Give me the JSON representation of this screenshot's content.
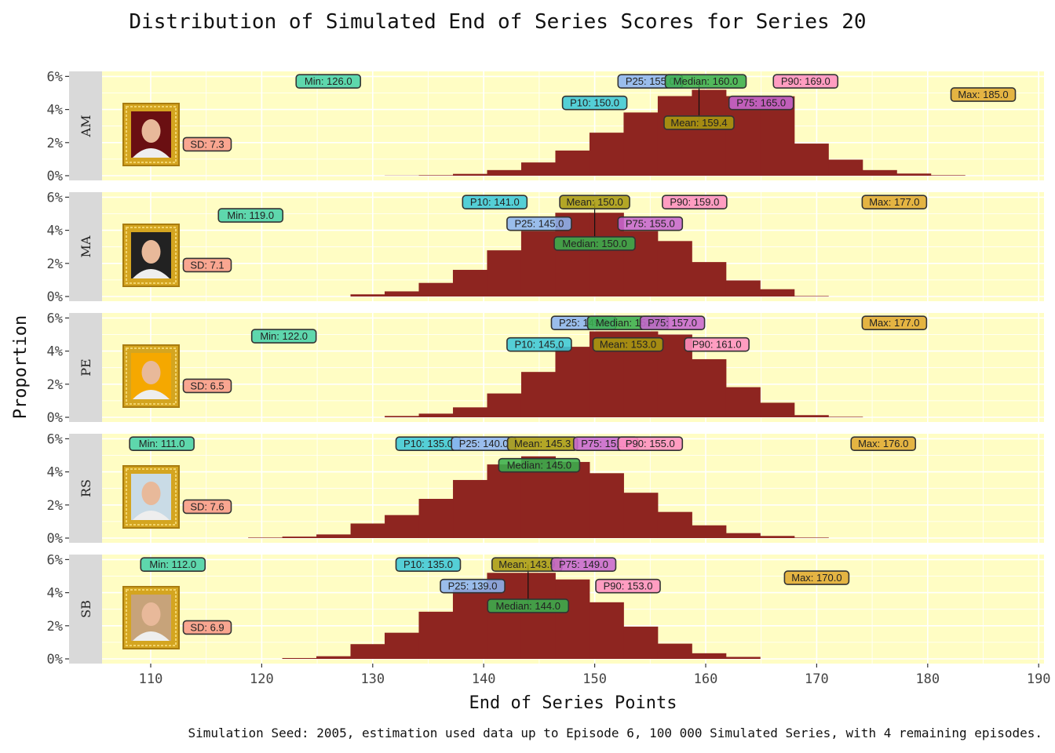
{
  "chart_data": {
    "type": "bar",
    "title": "Distribution of Simulated End of Series Scores for Series 20",
    "xlabel": "End of Series Points",
    "ylabel": "Proportion",
    "caption": "Simulation Seed: 2005, estimation used data up to Episode 6, 100 000 Simulated Series, with 4 remaining episodes.",
    "xlim": [
      105.6,
      190.5
    ],
    "ylim": [
      0,
      6.5
    ],
    "x_ticks": [
      "110",
      "120",
      "130",
      "140",
      "150",
      "160",
      "170",
      "180",
      "190"
    ],
    "x_tick_values": [
      110,
      120,
      130,
      140,
      150,
      160,
      170,
      180,
      190
    ],
    "y_ticks": [
      "0%",
      "2%",
      "4%",
      "6%"
    ],
    "y_tick_values": [
      0,
      2,
      4,
      6
    ],
    "grid": true,
    "bin_width": 3.075,
    "colors": {
      "bar": "#8e2520",
      "panel_bg": "#fffdc4",
      "strip_bg": "#d9d9d9",
      "Min": "#48d1a8",
      "P10": "#3cc8d8",
      "P25": "#8cb4f0",
      "Median": "#3aae4c",
      "Mean": "#a89a10",
      "P75": "#c766cf",
      "P90": "#ff8fc0",
      "Max": "#e0aa30",
      "SD": "#f89a88"
    },
    "panels": [
      {
        "strip": "AM",
        "first_bin_left": 131.08,
        "proportions": [
          0.01,
          0.03,
          0.11,
          0.34,
          0.8,
          1.52,
          2.6,
          3.82,
          4.81,
          5.19,
          4.81,
          4.8,
          1.94,
          0.97,
          0.34,
          0.13,
          0.03
        ],
        "labels": [
          {
            "key": "Min",
            "text": "Min: 126.0",
            "value": 126.0
          },
          {
            "key": "P25",
            "text": "P25: 155.0",
            "value": 155.0
          },
          {
            "key": "Median",
            "text": "Median: 160.0",
            "value": 160.0
          },
          {
            "key": "P90",
            "text": "P90: 169.0",
            "value": 169.0
          },
          {
            "key": "Max",
            "text": "Max: 185.0",
            "value": 185.0
          },
          {
            "key": "P10",
            "text": "P10: 150.0",
            "value": 150.0
          },
          {
            "key": "P75",
            "text": "P75: 165.0",
            "value": 165.0
          },
          {
            "key": "Mean",
            "text": "Mean: 159.4",
            "value": 159.4
          }
        ],
        "sd": "SD: 7.3"
      },
      {
        "strip": "MA",
        "first_bin_left": 128.0,
        "proportions": [
          0.13,
          0.31,
          0.82,
          1.61,
          2.79,
          3.95,
          5.06,
          5.06,
          3.95,
          3.35,
          2.08,
          0.97,
          0.44,
          0.03
        ],
        "labels": [
          {
            "key": "P10",
            "text": "P10: 141.0",
            "value": 141.0
          },
          {
            "key": "Mean",
            "text": "Mean: 150.0",
            "value": 150.0
          },
          {
            "key": "P90",
            "text": "P90: 159.0",
            "value": 159.0
          },
          {
            "key": "Max",
            "text": "Max: 177.0",
            "value": 177.0
          },
          {
            "key": "Min",
            "text": "Min: 119.0",
            "value": 119.0
          },
          {
            "key": "P25",
            "text": "P25: 145.0",
            "value": 145.0
          },
          {
            "key": "P75",
            "text": "P75: 155.0",
            "value": 155.0
          },
          {
            "key": "Median",
            "text": "Median: 150.0",
            "value": 150.0
          }
        ],
        "sd": "SD: 7.1"
      },
      {
        "strip": "PE",
        "first_bin_left": 131.08,
        "proportions": [
          0.08,
          0.22,
          0.6,
          1.44,
          2.74,
          4.26,
          5.19,
          5.19,
          5.0,
          3.51,
          1.82,
          0.88,
          0.13,
          0.03
        ],
        "labels": [
          {
            "key": "P25",
            "text": "P25: 149.0",
            "value": 149.0
          },
          {
            "key": "Median",
            "text": "Median: 153.0",
            "value": 153.0
          },
          {
            "key": "P75",
            "text": "P75: 157.0",
            "value": 157.0
          },
          {
            "key": "Max",
            "text": "Max: 177.0",
            "value": 177.0
          },
          {
            "key": "Min",
            "text": "Min: 122.0",
            "value": 122.0
          },
          {
            "key": "P10",
            "text": "P10: 145.0",
            "value": 145.0
          },
          {
            "key": "Mean",
            "text": "Mean: 153.0",
            "value": 153.0
          },
          {
            "key": "P90",
            "text": "P90: 161.0",
            "value": 161.0
          }
        ],
        "sd": "SD: 6.5"
      },
      {
        "strip": "RS",
        "first_bin_left": 118.78,
        "proportions": [
          0.03,
          0.09,
          0.22,
          0.88,
          1.39,
          2.37,
          3.51,
          4.45,
          4.94,
          4.6,
          3.92,
          2.74,
          1.58,
          0.77,
          0.3,
          0.13,
          0.03
        ],
        "labels": [
          {
            "key": "Min",
            "text": "Min: 111.0",
            "value": 111.0
          },
          {
            "key": "P10",
            "text": "P10: 135.0",
            "value": 135.0
          },
          {
            "key": "P25",
            "text": "P25: 140.0",
            "value": 140.0
          },
          {
            "key": "Mean",
            "text": "Mean: 145.3",
            "value": 145.3
          },
          {
            "key": "P75",
            "text": "P75: 151.0",
            "value": 151.0
          },
          {
            "key": "P90",
            "text": "P90: 155.0",
            "value": 155.0
          },
          {
            "key": "Max",
            "text": "Max: 176.0",
            "value": 176.0
          },
          {
            "key": "Median",
            "text": "Median: 145.0",
            "value": 145.0
          }
        ],
        "sd": "SD: 7.6"
      },
      {
        "strip": "SB",
        "first_bin_left": 121.85,
        "proportions": [
          0.05,
          0.16,
          0.89,
          1.58,
          2.85,
          4.2,
          5.2,
          5.2,
          4.8,
          3.42,
          1.95,
          0.92,
          0.34,
          0.12
        ],
        "labels": [
          {
            "key": "Min",
            "text": "Min: 112.0",
            "value": 112.0
          },
          {
            "key": "P10",
            "text": "P10: 135.0",
            "value": 135.0
          },
          {
            "key": "Mean",
            "text": "Mean: 143.9",
            "value": 143.9
          },
          {
            "key": "P75",
            "text": "P75: 149.0",
            "value": 149.0
          },
          {
            "key": "Max",
            "text": "Max: 170.0",
            "value": 170.0
          },
          {
            "key": "P25",
            "text": "P25: 139.0",
            "value": 139.0
          },
          {
            "key": "P90",
            "text": "P90: 153.0",
            "value": 153.0
          },
          {
            "key": "Median",
            "text": "Median: 144.0",
            "value": 144.0
          }
        ],
        "sd": "SD: 6.9"
      }
    ]
  }
}
